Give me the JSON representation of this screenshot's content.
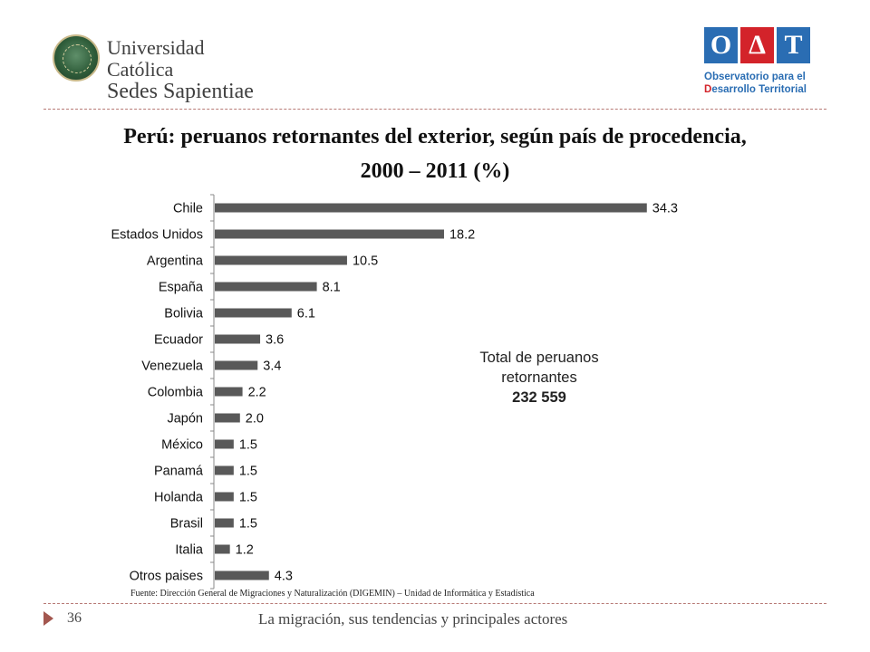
{
  "header": {
    "university_line1": "Universidad Católica",
    "university_line2": "Sedes Sapientiae",
    "odt_letters": [
      "O",
      "Δ",
      "T"
    ],
    "odt_line1": "Observatorio para el",
    "odt_line2_initial": "D",
    "odt_line2_rest": "esarrollo Territorial"
  },
  "chart_data": {
    "type": "bar",
    "orientation": "horizontal",
    "title_line1": "Perú: peruanos retornantes del exterior, según país de procedencia,",
    "title_line2": "2000 – 2011 (%)",
    "categories": [
      "Chile",
      "Estados Unidos",
      "Argentina",
      "España",
      "Bolivia",
      "Ecuador",
      "Venezuela",
      "Colombia",
      "Japón",
      "México",
      "Panamá",
      "Holanda",
      "Brasil",
      "Italia",
      "Otros paises"
    ],
    "values": [
      34.3,
      18.2,
      10.5,
      8.1,
      6.1,
      3.6,
      3.4,
      2.2,
      2.0,
      1.5,
      1.5,
      1.5,
      1.5,
      1.2,
      4.3
    ],
    "value_labels": [
      "34.3",
      "18.2",
      "10.5",
      "8.1",
      "6.1",
      "3.6",
      "3.4",
      "2.2",
      "2.0",
      "1.5",
      "1.5",
      "1.5",
      "1.5",
      "1.2",
      "4.3"
    ],
    "xlim": [
      0,
      40
    ],
    "bar_color": "#595959"
  },
  "annotation": {
    "line1": "Total de peruanos",
    "line2": "retornantes",
    "value": "232 559"
  },
  "source": "Fuente: Dirección General de Migraciones y Naturalización (DIGEMIN) – Unidad de Informática y Estadística",
  "footer": {
    "page_number": "36",
    "text": "La migración, sus tendencias y principales actores"
  }
}
